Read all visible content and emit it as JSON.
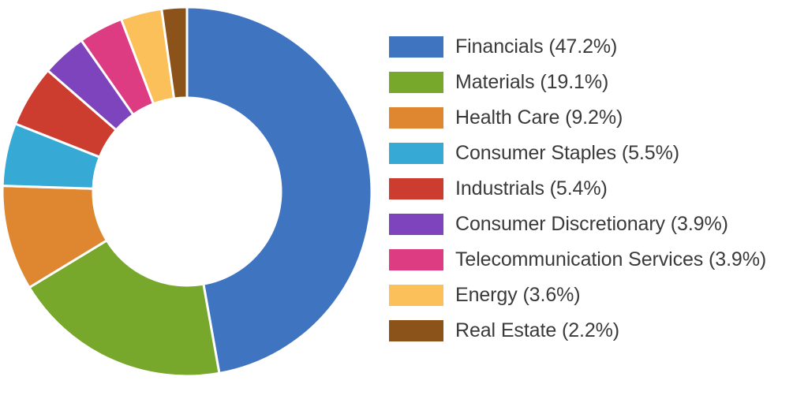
{
  "chart_data": {
    "type": "pie",
    "variant": "donut",
    "title": "",
    "start_angle_deg": 0,
    "direction": "clockwise",
    "legend_position": "right",
    "categories": [
      "Financials",
      "Materials",
      "Health Care",
      "Consumer Staples",
      "Industrials",
      "Consumer Discretionary",
      "Telecommunication Services",
      "Energy",
      "Real Estate"
    ],
    "values": [
      47.2,
      19.1,
      9.2,
      5.5,
      5.4,
      3.9,
      3.9,
      3.6,
      2.2
    ],
    "colors": [
      "#3e74c0",
      "#77a82c",
      "#de8630",
      "#36a9d4",
      "#cc3d2f",
      "#7d44bd",
      "#dd3c83",
      "#fbc05a",
      "#8b5219"
    ],
    "unit": "%"
  },
  "legend": {
    "items": [
      {
        "label": "Financials (47.2%)",
        "color": "#3e74c0"
      },
      {
        "label": "Materials (19.1%)",
        "color": "#77a82c"
      },
      {
        "label": "Health Care (9.2%)",
        "color": "#de8630"
      },
      {
        "label": "Consumer Staples (5.5%)",
        "color": "#36a9d4"
      },
      {
        "label": "Industrials (5.4%)",
        "color": "#cc3d2f"
      },
      {
        "label": "Consumer Discretionary (3.9%)",
        "color": "#7d44bd"
      },
      {
        "label": "Telecommunication Services (3.9%)",
        "color": "#dd3c83"
      },
      {
        "label": "Energy (3.6%)",
        "color": "#fbc05a"
      },
      {
        "label": "Real Estate (2.2%)",
        "color": "#8b5219"
      }
    ]
  }
}
